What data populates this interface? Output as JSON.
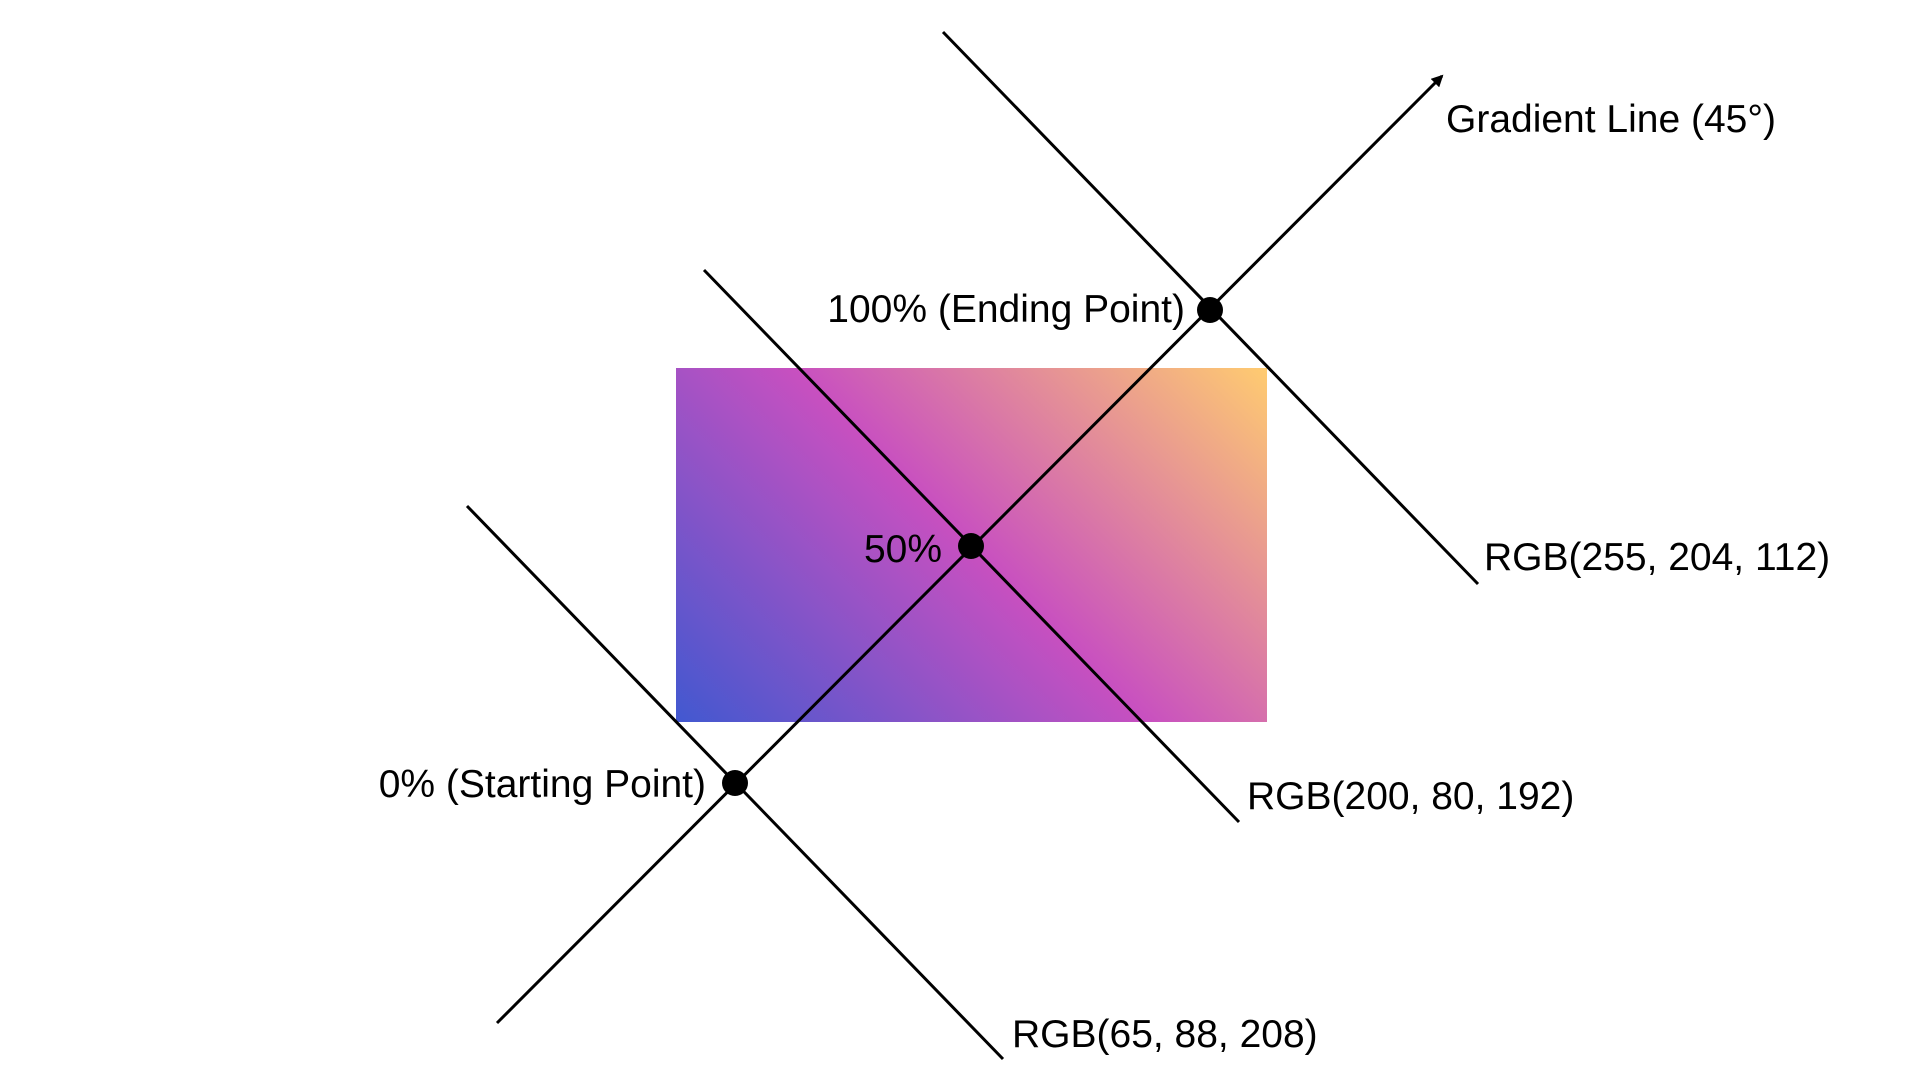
{
  "diagram": {
    "gradient_line_label": "Gradient Line (45°)",
    "stops": [
      {
        "position_label": "0% (Starting Point)",
        "color_label": "RGB(65, 88, 208)",
        "color": "#4158d0"
      },
      {
        "position_label": "50%",
        "color_label": "RGB(200, 80, 192)",
        "color": "#c850c0"
      },
      {
        "position_label": "100% (Ending Point)",
        "color_label": "RGB(255, 204, 112)",
        "color": "#ffcc70"
      }
    ]
  }
}
